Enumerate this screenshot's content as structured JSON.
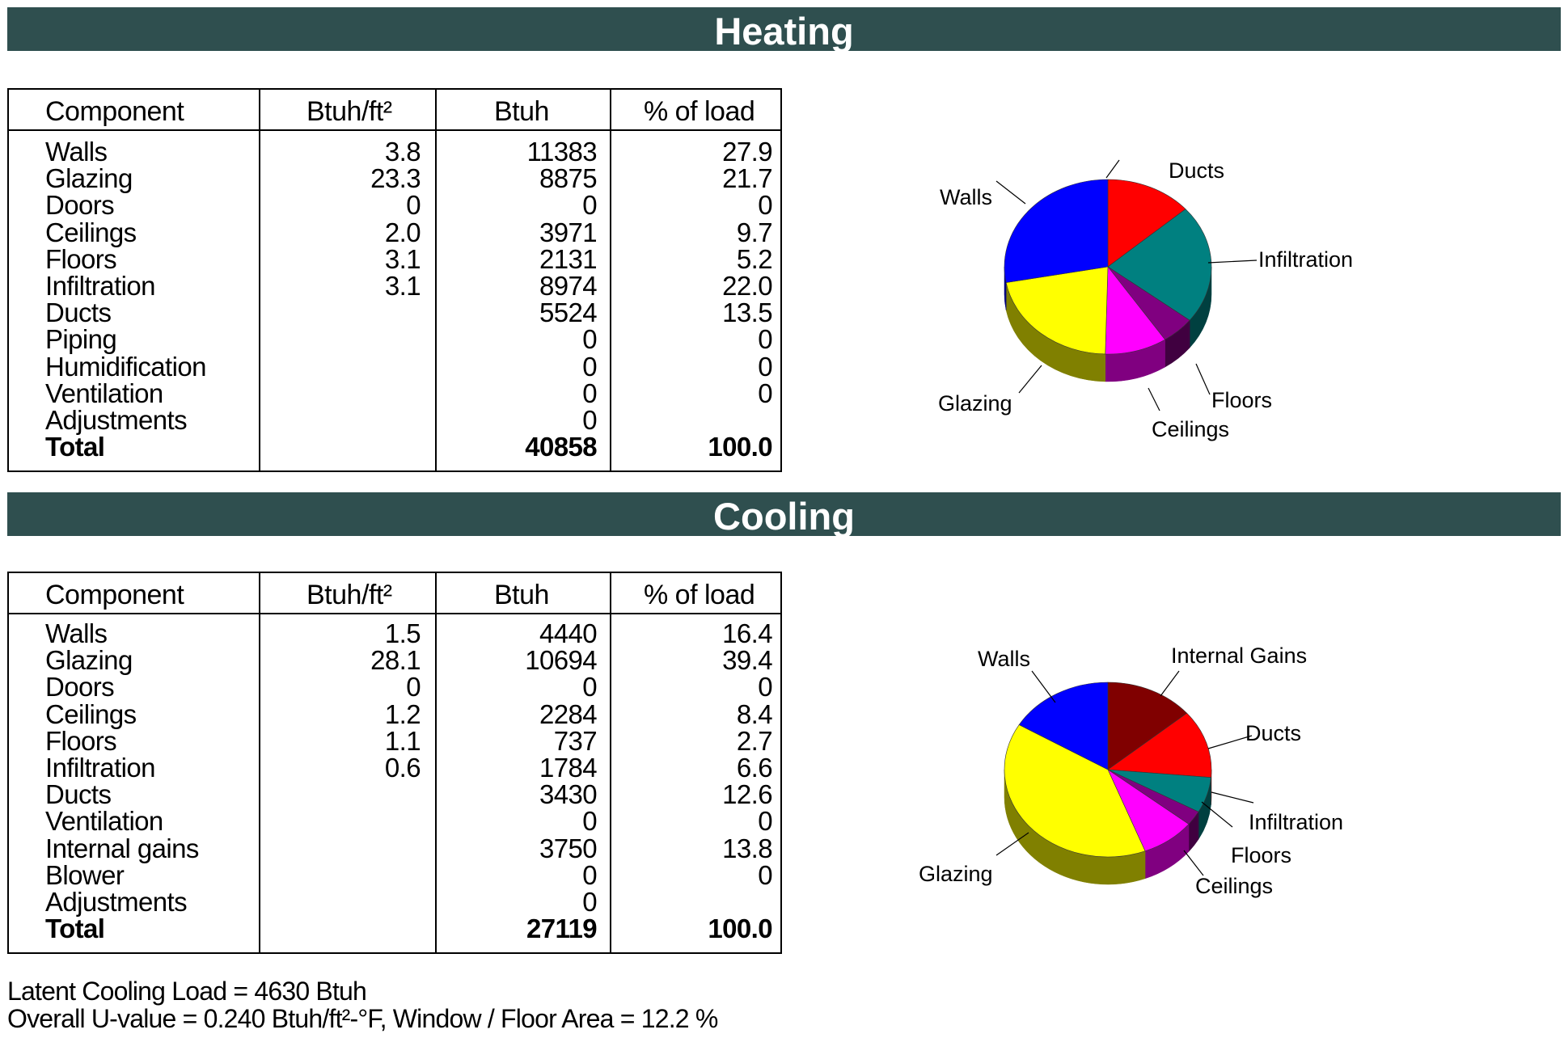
{
  "heating": {
    "title": "Heating",
    "headers": [
      "Component",
      "Btuh/ft²",
      "Btuh",
      "% of load"
    ],
    "rows": [
      [
        "Walls",
        "3.8",
        "11383",
        "27.9"
      ],
      [
        "Glazing",
        "23.3",
        "8875",
        "21.7"
      ],
      [
        "Doors",
        "0",
        "0",
        "0"
      ],
      [
        "Ceilings",
        "2.0",
        "3971",
        "9.7"
      ],
      [
        "Floors",
        "3.1",
        "2131",
        "5.2"
      ],
      [
        "Infiltration",
        "3.1",
        "8974",
        "22.0"
      ],
      [
        "Ducts",
        "",
        "5524",
        "13.5"
      ],
      [
        "Piping",
        "",
        "0",
        "0"
      ],
      [
        "Humidification",
        "",
        "0",
        "0"
      ],
      [
        "Ventilation",
        "",
        "0",
        "0"
      ],
      [
        "Adjustments",
        "",
        "0",
        ""
      ],
      [
        "Total",
        "",
        "40858",
        "100.0"
      ]
    ],
    "pie_labels": {
      "walls": "Walls",
      "ducts": "Ducts",
      "infiltration": "Infiltration",
      "floors": "Floors",
      "ceilings": "Ceilings",
      "glazing": "Glazing"
    }
  },
  "cooling": {
    "title": "Cooling",
    "headers": [
      "Component",
      "Btuh/ft²",
      "Btuh",
      "% of load"
    ],
    "rows": [
      [
        "Walls",
        "1.5",
        "4440",
        "16.4"
      ],
      [
        "Glazing",
        "28.1",
        "10694",
        "39.4"
      ],
      [
        "Doors",
        "0",
        "0",
        "0"
      ],
      [
        "Ceilings",
        "1.2",
        "2284",
        "8.4"
      ],
      [
        "Floors",
        "1.1",
        "737",
        "2.7"
      ],
      [
        "Infiltration",
        "0.6",
        "1784",
        "6.6"
      ],
      [
        "Ducts",
        "",
        "3430",
        "12.6"
      ],
      [
        "Ventilation",
        "",
        "0",
        "0"
      ],
      [
        "Internal gains",
        "",
        "3750",
        "13.8"
      ],
      [
        "Blower",
        "",
        "0",
        "0"
      ],
      [
        "Adjustments",
        "",
        "0",
        ""
      ],
      [
        "Total",
        "",
        "27119",
        "100.0"
      ]
    ],
    "pie_labels": {
      "walls": "Walls",
      "internal_gains": "Internal Gains",
      "ducts": "Ducts",
      "infiltration": "Infiltration",
      "floors": "Floors",
      "ceilings": "Ceilings",
      "glazing": "Glazing"
    }
  },
  "chart_data": [
    {
      "type": "pie",
      "slices": [
        {
          "label": "Ducts",
          "value": 13.5,
          "color": "#ff0000"
        },
        {
          "label": "Infiltration",
          "value": 22.0,
          "color": "#008080"
        },
        {
          "label": "Floors",
          "value": 5.2,
          "color": "#800080"
        },
        {
          "label": "Ceilings",
          "value": 9.7,
          "color": "#ff00ff"
        },
        {
          "label": "Glazing",
          "value": 21.7,
          "color": "#ffff00"
        },
        {
          "label": "Walls",
          "value": 27.9,
          "color": "#0000ff"
        }
      ]
    },
    {
      "type": "pie",
      "slices": [
        {
          "label": "Internal Gains",
          "value": 13.8,
          "color": "#800000"
        },
        {
          "label": "Ducts",
          "value": 12.6,
          "color": "#ff0000"
        },
        {
          "label": "Infiltration",
          "value": 6.6,
          "color": "#008080"
        },
        {
          "label": "Floors",
          "value": 2.7,
          "color": "#800080"
        },
        {
          "label": "Ceilings",
          "value": 8.4,
          "color": "#ff00ff"
        },
        {
          "label": "Glazing",
          "value": 39.4,
          "color": "#ffff00"
        },
        {
          "label": "Walls",
          "value": 16.4,
          "color": "#0000ff"
        }
      ]
    }
  ],
  "footer": {
    "line1": "Latent Cooling Load = 4630 Btuh",
    "line2": "Overall U-value = 0.240 Btuh/ft²-°F,  Window / Floor Area = 12.2 %"
  }
}
